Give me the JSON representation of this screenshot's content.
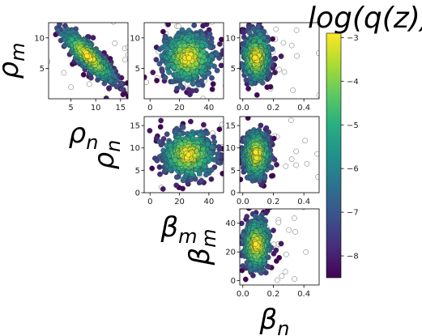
{
  "figure": {
    "colorbar_title": "log(q(z))"
  },
  "chart_data": {
    "type": "scatter",
    "description_points": "corner plot of three 2-D projections; points colored by log(q(z)), hollow markers for low-density samples",
    "colormap": "viridis",
    "colorbar": {
      "label": "log(q(z))",
      "range": [
        -8.5,
        -2.9
      ],
      "ticks": [
        -3,
        -4,
        -5,
        -6,
        -7,
        -8
      ]
    },
    "panels": [
      {
        "id": "rho_n-rho_m",
        "row": 0,
        "col": 0,
        "xlabel": "ρn",
        "ylabel": "ρm",
        "xlim": [
          0.5,
          16.5
        ],
        "ylim": [
          0,
          12.5
        ],
        "xticks": [
          5,
          10,
          15
        ],
        "yticks": [
          5,
          10
        ],
        "cloud": {
          "cx": 8.5,
          "cy": 7.0,
          "sx": 3.0,
          "sy": 2.5,
          "corr": -0.85
        }
      },
      {
        "id": "beta_m-rho_m",
        "row": 0,
        "col": 1,
        "xlabel": "",
        "ylabel": "",
        "xlim": [
          -4,
          50
        ],
        "ylim": [
          0,
          12.5
        ],
        "xticks": [
          0,
          20,
          40
        ],
        "yticks": [
          5,
          10
        ],
        "cloud": {
          "cx": 26,
          "cy": 6.8,
          "sx": 10,
          "sy": 2.4,
          "corr": 0.0
        }
      },
      {
        "id": "beta_n-rho_m",
        "row": 0,
        "col": 2,
        "xlabel": "",
        "ylabel": "",
        "xlim": [
          -0.02,
          0.5
        ],
        "ylim": [
          0,
          12.5
        ],
        "xticks": [
          0.0,
          0.2,
          0.4
        ],
        "yticks": [
          5,
          10
        ],
        "cloud": {
          "cx": 0.09,
          "cy": 6.8,
          "sx": 0.05,
          "sy": 2.4,
          "corr": 0.0
        }
      },
      {
        "id": "beta_m-rho_n",
        "row": 1,
        "col": 1,
        "xlabel": "βm",
        "ylabel": "ρn",
        "xlim": [
          -4,
          50
        ],
        "ylim": [
          0,
          17
        ],
        "xticks": [
          0,
          20,
          40
        ],
        "yticks": [
          0,
          5,
          10,
          15
        ],
        "cloud": {
          "cx": 26,
          "cy": 8.5,
          "sx": 10,
          "sy": 3.0,
          "corr": 0.0
        }
      },
      {
        "id": "beta_n-rho_n",
        "row": 1,
        "col": 2,
        "xlabel": "",
        "ylabel": "",
        "xlim": [
          -0.02,
          0.5
        ],
        "ylim": [
          0,
          17
        ],
        "xticks": [
          0.0,
          0.2,
          0.4
        ],
        "yticks": [
          0,
          5,
          10,
          15
        ],
        "cloud": {
          "cx": 0.09,
          "cy": 8.5,
          "sx": 0.05,
          "sy": 3.0,
          "corr": 0.0
        }
      },
      {
        "id": "beta_n-beta_m",
        "row": 2,
        "col": 2,
        "xlabel": "βn",
        "ylabel": "βm",
        "xlim": [
          -0.02,
          0.5
        ],
        "ylim": [
          -3,
          50
        ],
        "xticks": [
          0.0,
          0.2,
          0.4
        ],
        "yticks": [
          0,
          20,
          40
        ],
        "cloud": {
          "cx": 0.09,
          "cy": 25,
          "sx": 0.05,
          "sy": 10,
          "corr": 0.0
        }
      }
    ]
  }
}
